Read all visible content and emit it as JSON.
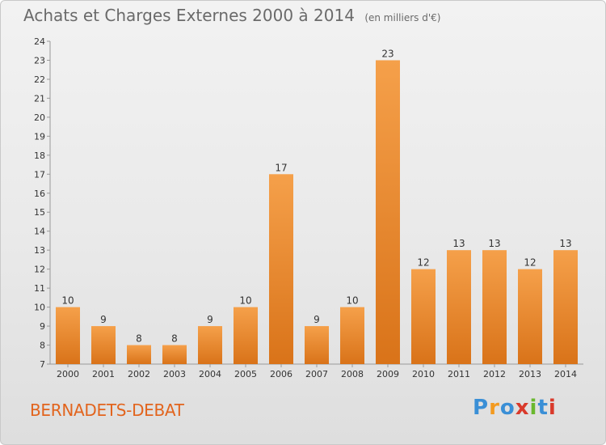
{
  "header": {
    "title": "Achats et Charges Externes 2000 à 2014",
    "subtitle": "(en milliers d'€)"
  },
  "footer": {
    "location": "BERNADETS-DEBAT",
    "logo": [
      "P",
      "r",
      "o",
      "x",
      "i",
      "t",
      "i"
    ],
    "logo_colors": [
      "#3a8fd6",
      "#f39a1f",
      "#3a8fd6",
      "#d93a2b",
      "#6ab82f",
      "#3a8fd6",
      "#d93a2b"
    ]
  },
  "chart_data": {
    "type": "bar",
    "title": "Achats et Charges Externes 2000 à 2014",
    "subtitle": "(en milliers d'€)",
    "categories": [
      "2000",
      "2001",
      "2002",
      "2003",
      "2004",
      "2005",
      "2006",
      "2007",
      "2008",
      "2009",
      "2010",
      "2011",
      "2012",
      "2013",
      "2014"
    ],
    "values": [
      10,
      9,
      8,
      8,
      9,
      10,
      17,
      9,
      10,
      23,
      12,
      13,
      13,
      12,
      13
    ],
    "ylim": [
      7,
      24
    ],
    "yticks": [
      "7",
      "8",
      "9",
      "10",
      "11",
      "12",
      "13",
      "14",
      "15",
      "16",
      "17",
      "18",
      "19",
      "20",
      "21",
      "22",
      "23",
      "24"
    ],
    "bar_color": "#f5a04a",
    "bar_color_dark": "#d97319",
    "grid": false,
    "data_labels": true
  }
}
